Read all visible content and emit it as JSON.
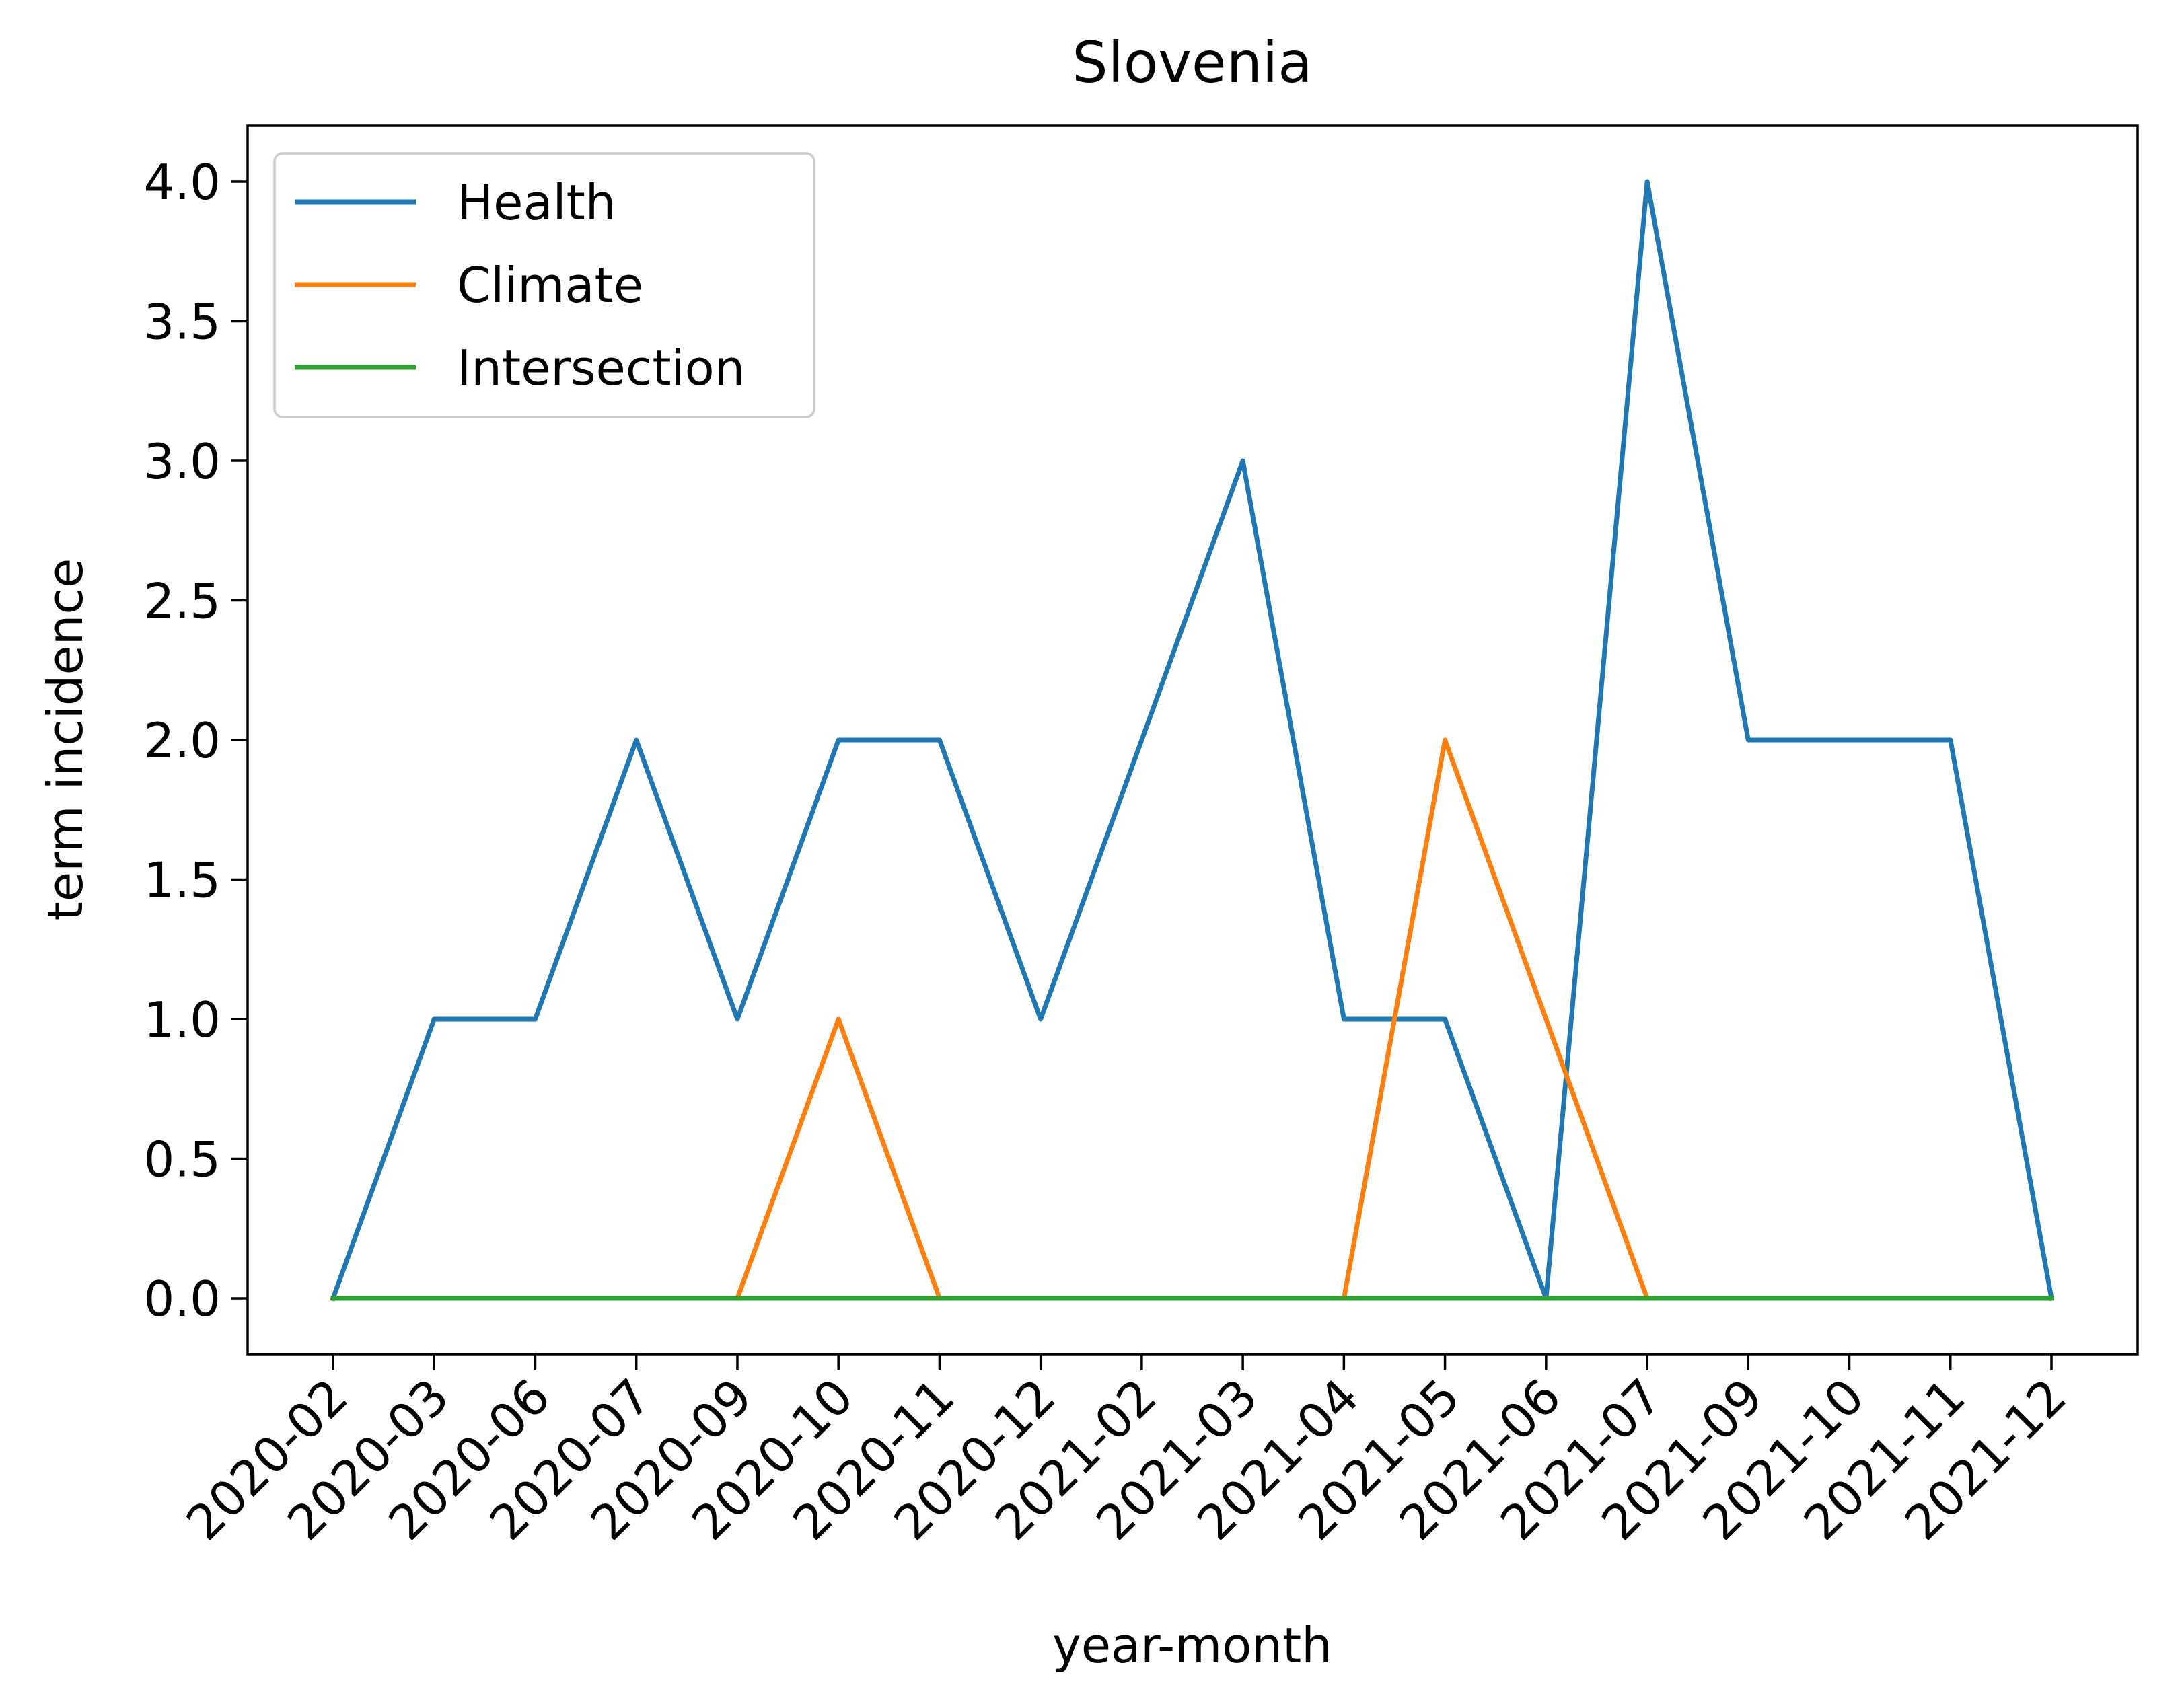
{
  "chart_data": {
    "type": "line",
    "title": "Slovenia",
    "xlabel": "year-month",
    "ylabel": "term incidence",
    "categories": [
      "2020-02",
      "2020-03",
      "2020-06",
      "2020-07",
      "2020-09",
      "2020-10",
      "2020-11",
      "2020-12",
      "2021-02",
      "2021-03",
      "2021-04",
      "2021-05",
      "2021-06",
      "2021-07",
      "2021-09",
      "2021-10",
      "2021-11",
      "2021-12"
    ],
    "yticks": [
      "0.0",
      "0.5",
      "1.0",
      "1.5",
      "2.0",
      "2.5",
      "3.0",
      "3.5",
      "4.0"
    ],
    "ylim": [
      -0.2,
      4.2
    ],
    "grid": false,
    "legend_position": "top-left",
    "series": [
      {
        "name": "Health",
        "color": "#1f77b4",
        "values": [
          0,
          1,
          1,
          2,
          1,
          2,
          2,
          1,
          2,
          3,
          1,
          1,
          0,
          4,
          2,
          2,
          2,
          0
        ]
      },
      {
        "name": "Climate",
        "color": "#ff7f0e",
        "values": [
          0,
          0,
          0,
          0,
          0,
          1,
          0,
          0,
          0,
          0,
          0,
          2,
          1,
          0,
          0,
          0,
          0,
          0
        ]
      },
      {
        "name": "Intersection",
        "color": "#2ca02c",
        "values": [
          0,
          0,
          0,
          0,
          0,
          0,
          0,
          0,
          0,
          0,
          0,
          0,
          0,
          0,
          0,
          0,
          0,
          0
        ]
      }
    ]
  }
}
